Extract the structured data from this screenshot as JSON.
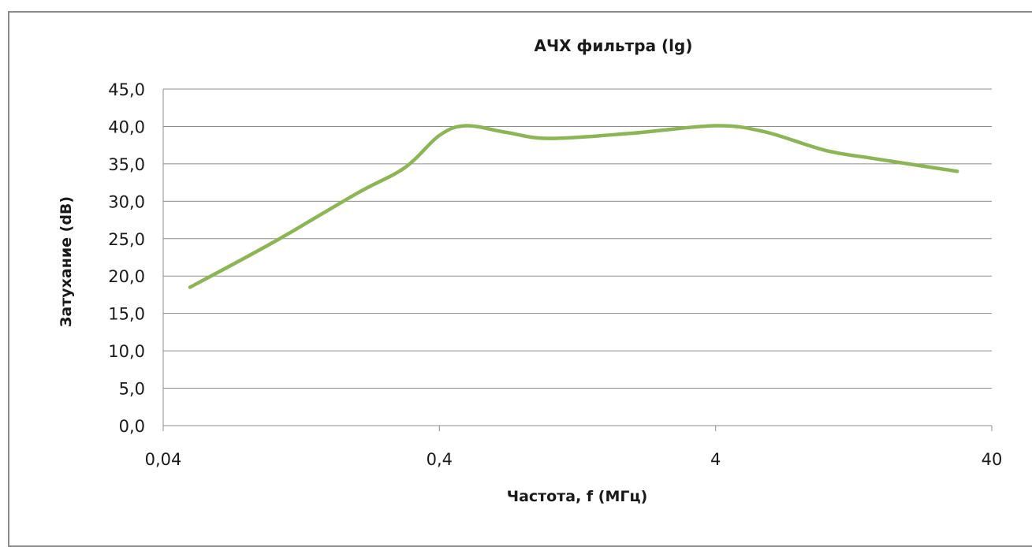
{
  "chart_data": {
    "type": "line",
    "title": "АЧХ  фильтра (lg)",
    "xlabel": "Частота, f (МГц)",
    "ylabel": "Затухание (dB)",
    "x_scale": "log",
    "xlim": [
      0.04,
      40
    ],
    "ylim": [
      0,
      45
    ],
    "y_step": 5,
    "grid": true,
    "legend": "none",
    "x_tick_values": [
      0.04,
      0.4,
      4,
      40
    ],
    "x_tick_labels": [
      "0,04",
      "0,4",
      "4",
      "40"
    ],
    "y_tick_labels": [
      "0,0",
      "5,0",
      "10,0",
      "15,0",
      "20,0",
      "25,0",
      "30,0",
      "35,0",
      "40,0",
      "45,0"
    ],
    "series": [
      {
        "color": "#8db556",
        "x": [
          0.05,
          0.1,
          0.2,
          0.3,
          0.4,
          0.5,
          0.7,
          1.0,
          2.0,
          4.0,
          6.0,
          10.0,
          15.0,
          30.0
        ],
        "values": [
          18.5,
          24.5,
          31.0,
          34.5,
          38.8,
          40.1,
          39.2,
          38.4,
          39.1,
          40.1,
          39.3,
          36.8,
          35.7,
          34.0
        ]
      }
    ]
  }
}
